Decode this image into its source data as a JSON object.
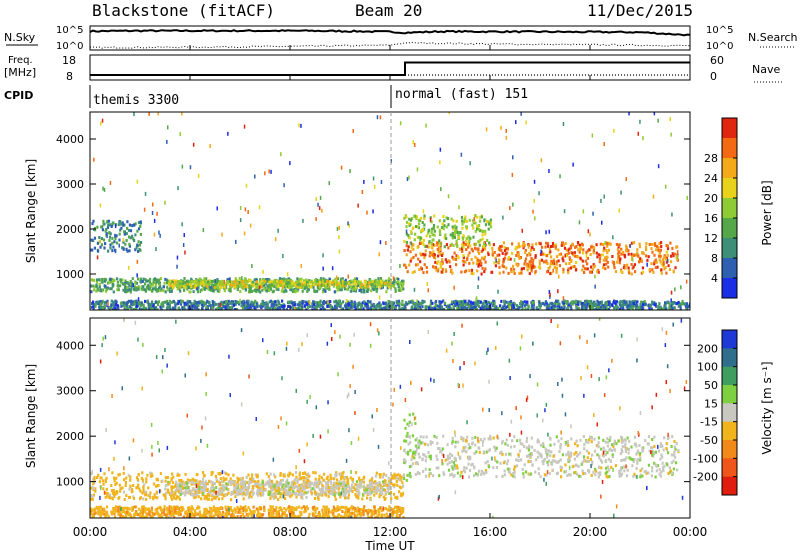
{
  "header": {
    "station": "Blackstone (fitACF)",
    "beam": "Beam 20",
    "date": "11/Dec/2015"
  },
  "chart_data": [
    {
      "type": "line",
      "panel": "noise",
      "left_label": "N.Sky",
      "right_label": "N.Search",
      "left_ticks": [
        "10^5",
        "10^0"
      ],
      "right_ticks": [
        "10^5",
        "10^0"
      ],
      "x_ticks": [
        "00:00",
        "04:00",
        "08:00",
        "12:00",
        "16:00",
        "20:00",
        "00:00"
      ],
      "series": [
        {
          "style": "solid",
          "x_hours": [
            0,
            1.5,
            3,
            6,
            9,
            12,
            12.6,
            14,
            18,
            22,
            24
          ],
          "level": [
            0.78,
            0.8,
            0.8,
            0.8,
            0.8,
            0.76,
            0.72,
            0.77,
            0.76,
            0.74,
            0.62
          ]
        },
        {
          "style": "dotted",
          "x_hours": [
            0,
            4,
            8,
            12,
            12.6,
            16,
            20,
            24
          ],
          "level": [
            0.1,
            0.12,
            0.15,
            0.2,
            0.3,
            0.25,
            0.22,
            0.18
          ]
        }
      ]
    },
    {
      "type": "line",
      "panel": "frequency",
      "left_label": "Freq.",
      "left_unit": "[MHz]",
      "right_label": "Nave",
      "left_ticks": [
        "18",
        "8"
      ],
      "right_ticks": [
        "60",
        "0"
      ],
      "series": [
        {
          "name": "Freq.",
          "style": "dotted",
          "x_hours": [
            0,
            24
          ],
          "y_mhz": [
            10,
            10
          ]
        },
        {
          "name": "Nave",
          "style": "solid",
          "x_hours": [
            0,
            12.6,
            12.6,
            24
          ],
          "y": [
            12,
            12,
            42,
            42
          ]
        }
      ]
    },
    {
      "type": "table",
      "panel": "cpid",
      "label": "CPID",
      "segments": [
        {
          "start_hours": 0,
          "text": "themis 3300"
        },
        {
          "start_hours": 12.6,
          "text": "normal (fast) 151"
        }
      ]
    },
    {
      "type": "heatmap",
      "panel": "power",
      "ylabel": "Slant Range [km]",
      "y_ticks": [
        1000,
        2000,
        3000,
        4000
      ],
      "ylim": [
        200,
        4600
      ],
      "xlim_hours": [
        0,
        24
      ],
      "colorbar_label": "Power [dB]",
      "colorbar_ticks": [
        4,
        8,
        12,
        16,
        20,
        24,
        28
      ],
      "colorbar_colors": [
        "#1a2ee6",
        "#2e5fb0",
        "#3f8f78",
        "#55a84a",
        "#8ecb34",
        "#e8d21a",
        "#f3a91a",
        "#f26a14",
        "#e02510"
      ],
      "bands": [
        {
          "x_hours": [
            0,
            12.5
          ],
          "range_km": [
            600,
            900
          ],
          "level": 0.35
        },
        {
          "x_hours": [
            3,
            12
          ],
          "range_km": [
            700,
            850
          ],
          "level": 0.55
        },
        {
          "x_hours": [
            0,
            2
          ],
          "range_km": [
            1500,
            2200
          ],
          "level": 0.25
        },
        {
          "x_hours": [
            12.5,
            23.5
          ],
          "range_km": [
            1000,
            1700
          ],
          "level": 0.85
        },
        {
          "x_hours": [
            12.5,
            16
          ],
          "range_km": [
            1600,
            2300
          ],
          "level": 0.5
        },
        {
          "x_hours": [
            0,
            24
          ],
          "range_km": [
            200,
            400
          ],
          "level": 0.2
        }
      ]
    },
    {
      "type": "heatmap",
      "panel": "velocity",
      "ylabel": "Slant Range [km]",
      "y_ticks": [
        1000,
        2000,
        3000,
        4000
      ],
      "ylim": [
        200,
        4600
      ],
      "xlim_hours": [
        0,
        24
      ],
      "xlabel": "Time UT",
      "colorbar_label": "Velocity [m s⁻¹]",
      "colorbar_ticks": [
        200,
        100,
        50,
        15,
        -15,
        -50,
        -100,
        -200
      ],
      "colorbar_colors": [
        "#1f39d6",
        "#2e6f8e",
        "#3f9d60",
        "#7fd040",
        "#c8c8c0",
        "#f1b41c",
        "#f28a1a",
        "#f0561a",
        "#e01e10"
      ],
      "bands": [
        {
          "x_hours": [
            0,
            12.5
          ],
          "range_km": [
            600,
            1200
          ],
          "velocity": -30
        },
        {
          "x_hours": [
            3,
            12
          ],
          "range_km": [
            700,
            1000
          ],
          "velocity": 0
        },
        {
          "x_hours": [
            12.5,
            23.5
          ],
          "range_km": [
            1100,
            2000
          ],
          "velocity": 0
        },
        {
          "x_hours": [
            12.5,
            13
          ],
          "range_km": [
            1000,
            2500
          ],
          "velocity": 30
        },
        {
          "x_hours": [
            0,
            12.5
          ],
          "range_km": [
            200,
            450
          ],
          "velocity": -40
        }
      ]
    }
  ]
}
